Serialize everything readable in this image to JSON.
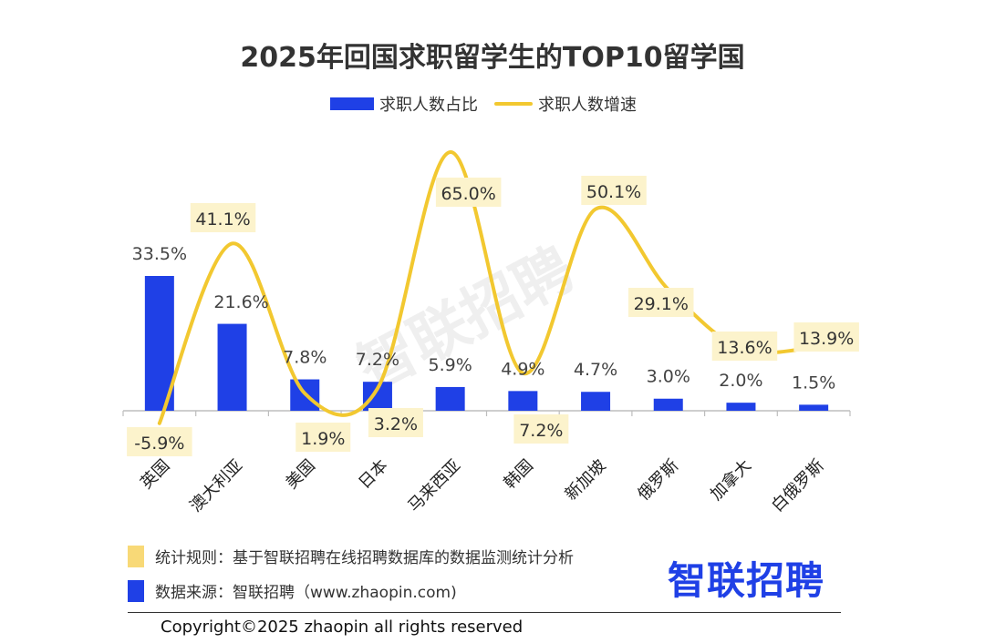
{
  "chart_data": {
    "type": "bar+line",
    "title": "2025年回国求职留学生的TOP10留学国",
    "categories": [
      "英国",
      "澳大利亚",
      "美国",
      "日本",
      "马来西亚",
      "韩国",
      "新加坡",
      "俄罗斯",
      "加拿大",
      "白俄罗斯"
    ],
    "series": [
      {
        "name": "求职人数占比",
        "kind": "bar",
        "color": "#1f40e6",
        "values": [
          33.5,
          21.6,
          7.8,
          7.2,
          5.9,
          4.9,
          4.7,
          3.0,
          2.0,
          1.5
        ],
        "labels": [
          "33.5%",
          "21.6%",
          "7.8%",
          "7.2%",
          "5.9%",
          "4.9%",
          "4.7%",
          "3.0%",
          "2.0%",
          "1.5%"
        ]
      },
      {
        "name": "求职人数增速",
        "kind": "line",
        "color": "#f2c830",
        "values": [
          -5.9,
          41.1,
          1.9,
          3.2,
          65.0,
          7.2,
          50.1,
          29.1,
          13.6,
          13.9
        ],
        "labels": [
          "-5.9%",
          "41.1%",
          "1.9%",
          "3.2%",
          "65.0%",
          "7.2%",
          "50.1%",
          "29.1%",
          "13.6%",
          "13.9%"
        ]
      }
    ],
    "legend_position": "top-center"
  },
  "footer": {
    "rule_label": "统计规则：基于智联招聘在线招聘数据库的数据监测统计分析",
    "source_label": "数据来源：智联招聘（www.zhaopin.com)",
    "rule_color": "#f8d977",
    "source_color": "#1f40e6",
    "brand": "智联招聘",
    "copyright": "Copyright©2025 zhaopin all rights reserved"
  },
  "watermark": "智联招聘"
}
